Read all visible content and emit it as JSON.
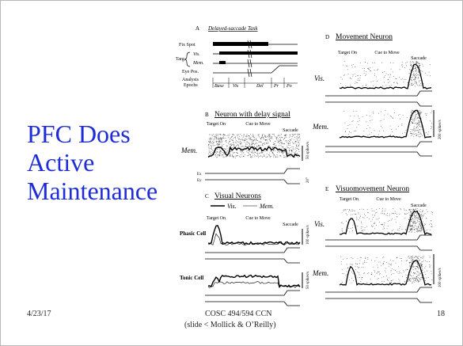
{
  "slide": {
    "title_lines": [
      "PFC Does",
      "Active",
      "Maintenance"
    ],
    "footer": {
      "date": "4/23/17",
      "course": "COSC 494/594 CCN",
      "credit": "(slide < Mollick & O’Reilly)",
      "page": "18"
    }
  },
  "figure": {
    "panel_a": {
      "letter": "A",
      "title": "Delayed-saccade Task",
      "rows": [
        "Fix Spot",
        "Targ",
        "Vis.",
        "Mem.",
        "Eye Pos.",
        "Analysis",
        "Epochs"
      ],
      "epochs": [
        "Base",
        "Vis",
        "Del",
        "Pr",
        "Po"
      ]
    },
    "panel_b": {
      "letter": "B",
      "title": "Neuron with delay signal",
      "events": [
        "Target On",
        "Cue to Move",
        "Saccade"
      ],
      "row_label": "Mem.",
      "scale": "50 spikes/s",
      "scale_time": "20°"
    },
    "panel_c": {
      "letter": "C",
      "title": "Visual Neurons",
      "legend": [
        "Vis.",
        "Mem."
      ],
      "events": [
        "Target On",
        "Cue to Move",
        "Saccade"
      ],
      "rows": [
        {
          "label": "Phasic Cell",
          "scale": "100 spikes/s"
        },
        {
          "label": "Tonic Cell",
          "scale": "50 spikes/s"
        }
      ]
    },
    "panel_d": {
      "letter": "D",
      "title": "Movement Neuron",
      "events": [
        "Target On",
        "Cue to Move",
        "Saccade"
      ],
      "rows": [
        "Vis.",
        "Mem."
      ],
      "scale": "200 spikes/s"
    },
    "panel_e": {
      "letter": "E",
      "title": "Visuomovement Neuron",
      "events": [
        "Target On",
        "Cue to Move",
        "Saccade"
      ],
      "rows": [
        "Vis.",
        "Mem."
      ],
      "scale": "100 spikes/s"
    },
    "eye_labels": [
      "Ex",
      "Ey"
    ]
  }
}
